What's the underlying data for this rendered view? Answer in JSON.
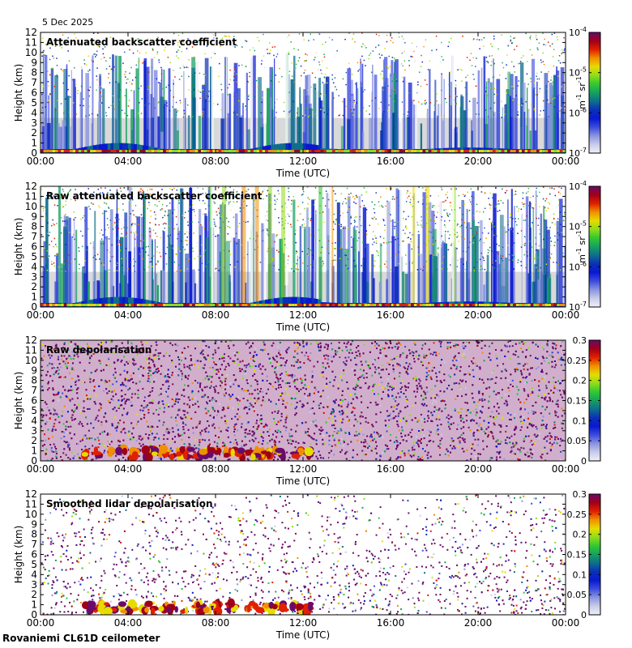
{
  "date": "5 Dec 2025",
  "footer": "Rovaniemi CL61D ceilometer",
  "colors": {
    "background_returns": "#d9d9d9",
    "colormap": [
      "#f0f0f8",
      "#c8cce8",
      "#8a94e0",
      "#3c4cdc",
      "#0a18d0",
      "#0a30b8",
      "#0f6e8c",
      "#16a060",
      "#32c832",
      "#90dc1a",
      "#e6dc00",
      "#f09000",
      "#e02000",
      "#a00018",
      "#6a0a6a"
    ]
  },
  "chart_data": [
    {
      "type": "heatmap",
      "title": "Attenuated backscatter coefficient",
      "xlabel": "Time (UTC)",
      "ylabel": "Height (km)",
      "x_ticks": [
        "00:00",
        "04:00",
        "08:00",
        "12:00",
        "16:00",
        "20:00",
        "00:00"
      ],
      "y_ticks": [
        "0",
        "1",
        "2",
        "3",
        "4",
        "5",
        "6",
        "7",
        "8",
        "9",
        "10",
        "11",
        "12"
      ],
      "xlim_hours": [
        0,
        24
      ],
      "ylim_km": [
        0,
        12
      ],
      "colorbar": {
        "scale": "log",
        "ticks": [
          {
            "base": "10",
            "exp": "-4"
          },
          {
            "base": "10",
            "exp": "-5"
          },
          {
            "base": "10",
            "exp": "-6"
          },
          {
            "base": "10",
            "exp": "-7"
          }
        ],
        "unit_label": {
          "m": "m",
          "m_exp": "-1",
          "sr": "sr",
          "sr_exp": "-1"
        }
      }
    },
    {
      "type": "heatmap",
      "title": "Raw attenuated backscatter coefficient",
      "xlabel": "Time (UTC)",
      "ylabel": "Height (km)",
      "x_ticks": [
        "00:00",
        "04:00",
        "08:00",
        "12:00",
        "16:00",
        "20:00",
        "00:00"
      ],
      "y_ticks": [
        "0",
        "1",
        "2",
        "3",
        "4",
        "5",
        "6",
        "7",
        "8",
        "9",
        "10",
        "11",
        "12"
      ],
      "xlim_hours": [
        0,
        24
      ],
      "ylim_km": [
        0,
        12
      ],
      "colorbar": {
        "scale": "log",
        "ticks": [
          {
            "base": "10",
            "exp": "-4"
          },
          {
            "base": "10",
            "exp": "-5"
          },
          {
            "base": "10",
            "exp": "-6"
          },
          {
            "base": "10",
            "exp": "-7"
          }
        ],
        "unit_label": {
          "m": "m",
          "m_exp": "-1",
          "sr": "sr",
          "sr_exp": "-1"
        }
      }
    },
    {
      "type": "heatmap",
      "title": "Raw depolarisation",
      "xlabel": "Time (UTC)",
      "ylabel": "Height (km)",
      "x_ticks": [
        "00:00",
        "04:00",
        "08:00",
        "12:00",
        "16:00",
        "20:00",
        "00:00"
      ],
      "y_ticks": [
        "0",
        "1",
        "2",
        "3",
        "4",
        "5",
        "6",
        "7",
        "8",
        "9",
        "10",
        "11",
        "12"
      ],
      "xlim_hours": [
        0,
        24
      ],
      "ylim_km": [
        0,
        12
      ],
      "colorbar": {
        "scale": "linear",
        "range": [
          0,
          0.3
        ],
        "ticks": [
          "0.3",
          "0.25",
          "0.2",
          "0.15",
          "0.1",
          "0.05",
          "0"
        ]
      }
    },
    {
      "type": "heatmap",
      "title": "Smoothed lidar depolarisation",
      "xlabel": "Time (UTC)",
      "ylabel": "Height (km)",
      "x_ticks": [
        "00:00",
        "04:00",
        "08:00",
        "12:00",
        "16:00",
        "20:00",
        "00:00"
      ],
      "y_ticks": [
        "0",
        "1",
        "2",
        "3",
        "4",
        "5",
        "6",
        "7",
        "8",
        "9",
        "10",
        "11",
        "12"
      ],
      "xlim_hours": [
        0,
        24
      ],
      "ylim_km": [
        0,
        12
      ],
      "colorbar": {
        "scale": "linear",
        "range": [
          0,
          0.3
        ],
        "ticks": [
          "0.3",
          "0.25",
          "0.2",
          "0.15",
          "0.1",
          "0.05",
          "0"
        ]
      }
    }
  ]
}
